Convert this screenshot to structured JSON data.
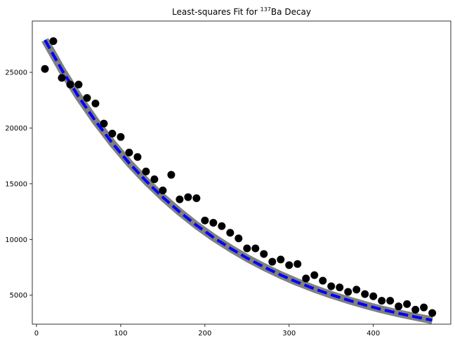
{
  "chart_data": {
    "type": "scatter",
    "title": {
      "prefix": "Least-squares Fit for ",
      "superscript": "137",
      "suffix": "Ba Decay"
    },
    "xlabel": "",
    "ylabel": "",
    "xlim": [
      -5,
      492
    ],
    "ylim": [
      2400,
      29600
    ],
    "xticks": [
      0,
      100,
      200,
      300,
      400
    ],
    "yticks": [
      5000,
      10000,
      15000,
      20000,
      25000
    ],
    "grid": false,
    "legend": "none",
    "colors": {
      "points": "#000000",
      "fit": "#0000ff",
      "band": "#808080"
    },
    "points": {
      "x": [
        10,
        20,
        30,
        40,
        50,
        60,
        70,
        80,
        90,
        100,
        110,
        120,
        130,
        140,
        150,
        160,
        170,
        180,
        190,
        200,
        210,
        220,
        230,
        240,
        250,
        260,
        270,
        280,
        290,
        300,
        310,
        320,
        330,
        340,
        350,
        360,
        370,
        380,
        390,
        400,
        410,
        420,
        430,
        440,
        450,
        460,
        470
      ],
      "y": [
        25300,
        27800,
        24500,
        23900,
        23900,
        22700,
        22200,
        20400,
        19500,
        19200,
        17800,
        17400,
        16100,
        15400,
        14400,
        15800,
        13600,
        13800,
        13700,
        11700,
        11500,
        11200,
        10600,
        10100,
        9200,
        9200,
        8700,
        8000,
        8200,
        7700,
        7800,
        6500,
        6800,
        6300,
        5800,
        5700,
        5300,
        5500,
        5100,
        4900,
        4500,
        4500,
        4000,
        4200,
        3700,
        3900,
        3400
      ]
    },
    "fit": {
      "x": [
        10,
        30,
        50,
        70,
        90,
        110,
        130,
        150,
        170,
        190,
        210,
        230,
        250,
        270,
        290,
        310,
        330,
        350,
        370,
        390,
        410,
        430,
        450,
        470
      ],
      "y": [
        27900,
        25230,
        22810,
        20630,
        18650,
        16860,
        15250,
        13790,
        12470,
        11270,
        10190,
        9220,
        8330,
        7540,
        6810,
        6160,
        5570,
        5040,
        4560,
        4120,
        3720,
        3370,
        3050,
        2750
      ]
    }
  }
}
